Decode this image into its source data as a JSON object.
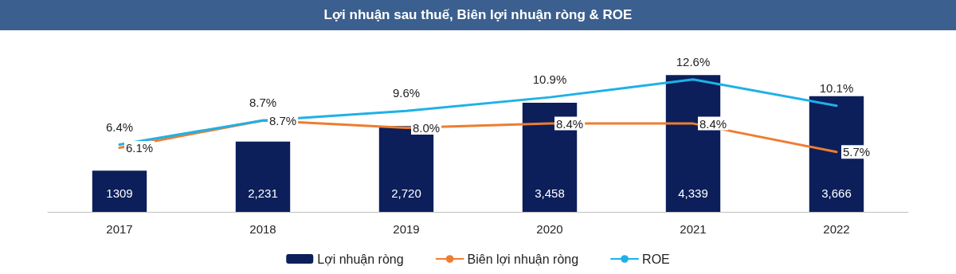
{
  "chart_data": {
    "type": "bar",
    "title": "Lợi nhuận sau thuế, Biên lợi nhuận ròng & ROE",
    "categories": [
      "2017",
      "2018",
      "2019",
      "2020",
      "2021",
      "2022"
    ],
    "series": [
      {
        "name": "Lợi nhuận ròng",
        "color": "#0c1f5b",
        "values": [
          1309,
          2231,
          2720,
          3458,
          4339,
          3666
        ],
        "value_labels": [
          "1309",
          "2,231",
          "2,720",
          "3,458",
          "4,339",
          "3,666"
        ]
      },
      {
        "name": "Biên lợi nhuận ròng",
        "type": "line",
        "axis": "y2",
        "color": "#ed7d31",
        "values": [
          6.1,
          8.7,
          8.0,
          8.4,
          8.4,
          5.7
        ],
        "value_labels": [
          "6.1%",
          "8.7%",
          "8.0%",
          "8.4%",
          "8.4%",
          "5.7%"
        ]
      },
      {
        "name": "ROE",
        "type": "line",
        "axis": "y2",
        "color": "#1fb1e6",
        "values": [
          6.4,
          8.7,
          9.6,
          10.9,
          12.6,
          10.1
        ],
        "value_labels": [
          "6.4%",
          "8.7%",
          "9.6%",
          "10.9%",
          "12.6%",
          "10.1%"
        ]
      }
    ],
    "grid": false,
    "legend": "bottom",
    "marker": "none"
  }
}
